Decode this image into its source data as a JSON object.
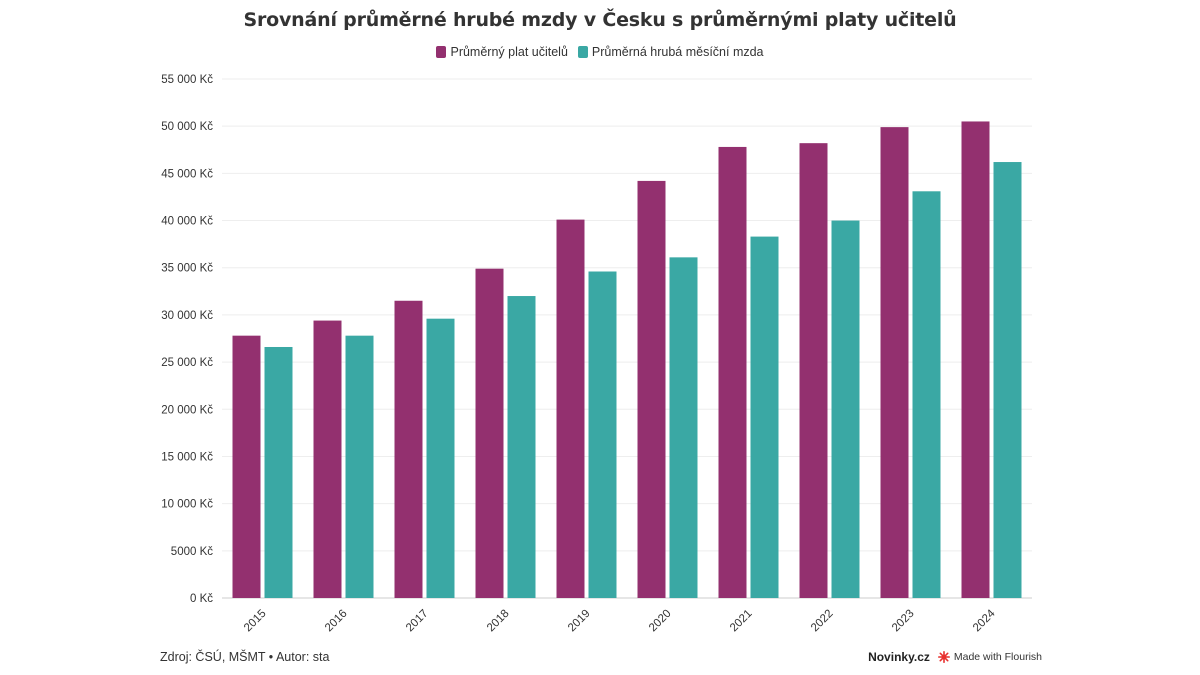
{
  "footer": {
    "source": "Zdroj: ČSÚ, MŠMT • Autor: sta",
    "brand": "Novinky.cz",
    "made_with": "Made with Flourish"
  },
  "icons": {
    "flourish_logo": "flourish-burst-icon"
  },
  "chart_data": {
    "type": "bar",
    "title": "Srovnání průměrné hrubé mzdy v Česku s průměrnými platy učitelů",
    "xlabel": "",
    "ylabel": "",
    "categories": [
      "2015",
      "2016",
      "2017",
      "2018",
      "2019",
      "2020",
      "2021",
      "2022",
      "2023",
      "2024"
    ],
    "series": [
      {
        "name": "Průměrný plat učitelů",
        "color": "#93306f",
        "values": [
          27800,
          29400,
          31500,
          34900,
          40100,
          44200,
          47800,
          48200,
          49900,
          50500
        ]
      },
      {
        "name": "Průměrná hrubá měsíční mzda",
        "color": "#3aa8a4",
        "values": [
          26600,
          27800,
          29600,
          32000,
          34600,
          36100,
          38300,
          40000,
          43100,
          46200
        ]
      }
    ],
    "ylim": [
      0,
      55000
    ],
    "y_ticks": [
      {
        "value": 0,
        "label": "0 Kč"
      },
      {
        "value": 5000,
        "label": "5000 Kč"
      },
      {
        "value": 10000,
        "label": "10 000 Kč"
      },
      {
        "value": 15000,
        "label": "15 000 Kč"
      },
      {
        "value": 20000,
        "label": "20 000 Kč"
      },
      {
        "value": 25000,
        "label": "25 000 Kč"
      },
      {
        "value": 30000,
        "label": "30 000 Kč"
      },
      {
        "value": 35000,
        "label": "35 000 Kč"
      },
      {
        "value": 40000,
        "label": "40 000 Kč"
      },
      {
        "value": 45000,
        "label": "45 000 Kč"
      },
      {
        "value": 50000,
        "label": "50 000 Kč"
      },
      {
        "value": 55000,
        "label": "55 000 Kč"
      }
    ],
    "grid": true,
    "legend_position": "top-center"
  }
}
